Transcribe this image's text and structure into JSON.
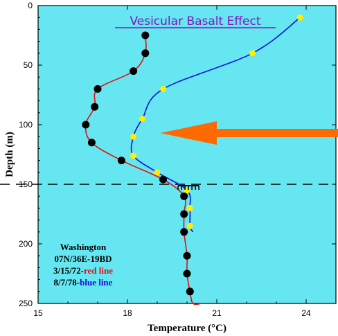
{
  "chart_data": {
    "type": "line",
    "title": "Vesicular Basalt Effect",
    "xlabel": "Temperature (°C)",
    "ylabel": "Depth (m)",
    "xlim": [
      15,
      25
    ],
    "ylim": [
      250,
      0
    ],
    "x_ticks": [
      "15",
      "18",
      "21",
      "24"
    ],
    "y_ticks": [
      "0",
      "50",
      "100",
      "150",
      "200",
      "250"
    ],
    "grid": false,
    "reference_line": {
      "depth": 150,
      "style": "dashed"
    },
    "arrow": {
      "points_to_depth": 107,
      "direction": "left"
    },
    "notes": {
      "line1": "Washington",
      "line2": "07N/36E-19BD",
      "line3_date": "3/15/72-",
      "line3_label": "red line",
      "line4_date": "8/7/78-",
      "line4_label": "blue line"
    },
    "colors": {
      "red_line": "#e01010",
      "blue_line": "#1010e0",
      "red_marker": "#000000",
      "blue_marker": "#ffee00",
      "background": "#66e6f0",
      "arrow": "#ff6a00",
      "title": "#8a10c0"
    },
    "series": [
      {
        "label": "3/15/72",
        "line": "red",
        "marker": "black",
        "x": [
          18.6,
          18.6,
          18.2,
          17.0,
          16.9,
          16.6,
          16.8,
          17.8,
          19.2,
          19.9,
          19.9,
          19.9,
          20.0,
          20.0,
          20.1,
          20.2,
          20.5
        ],
        "y": [
          25,
          40,
          55,
          70,
          85,
          100,
          115,
          130,
          146,
          160,
          175,
          190,
          210,
          225,
          240,
          250,
          250
        ],
        "marker_indices": [
          0,
          1,
          2,
          3,
          4,
          5,
          6,
          7,
          8,
          9,
          10,
          11,
          12,
          13,
          14
        ]
      },
      {
        "label": "8/7/78",
        "line": "blue",
        "marker": "yellow",
        "x": [
          23.8,
          22.2,
          19.2,
          18.5,
          18.2,
          18.2,
          19.0,
          20.0,
          20.1,
          20.1,
          20.2
        ],
        "y": [
          10,
          40,
          70,
          95,
          110,
          126,
          140,
          155,
          170,
          185,
          190
        ],
        "marker_indices": [
          0,
          1,
          2,
          3,
          4,
          5,
          6,
          7,
          8,
          9
        ]
      }
    ]
  }
}
